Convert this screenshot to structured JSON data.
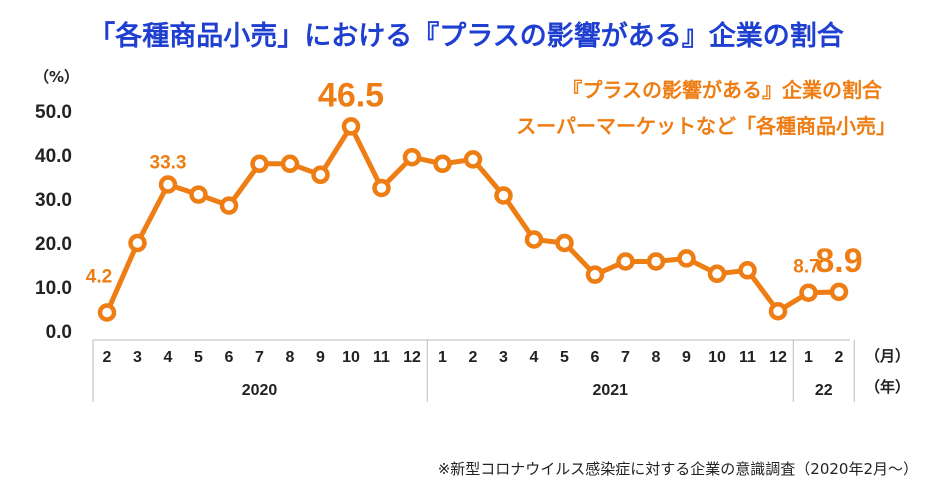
{
  "chart_data": {
    "type": "line",
    "title": "「各種商品小売」における『プラスの影響がある』企業の割合",
    "y_unit": "（%）",
    "x_unit": "（月）",
    "year_unit": "（年）",
    "ylim": [
      0,
      50
    ],
    "yticks": [
      "50.0",
      "40.0",
      "30.0",
      "20.0",
      "10.0",
      "0.0"
    ],
    "legend": [
      "『プラスの影響がある』企業の割合",
      "スーパーマーケットなど「各種商品小売」"
    ],
    "months": [
      "2",
      "3",
      "4",
      "5",
      "6",
      "7",
      "8",
      "9",
      "10",
      "11",
      "12",
      "1",
      "2",
      "3",
      "4",
      "5",
      "6",
      "7",
      "8",
      "9",
      "10",
      "11",
      "12",
      "1",
      "2"
    ],
    "years": [
      {
        "label": "2020",
        "count": 11
      },
      {
        "label": "2021",
        "count": 12
      },
      {
        "label": "22",
        "count": 2
      }
    ],
    "values": [
      4.2,
      20.0,
      33.3,
      31.0,
      28.5,
      38.0,
      38.0,
      35.5,
      46.5,
      32.5,
      39.5,
      38.0,
      39.0,
      30.8,
      20.8,
      20.0,
      12.8,
      15.8,
      15.8,
      16.5,
      13.0,
      13.8,
      4.5,
      8.7,
      8.9
    ],
    "data_labels": [
      {
        "index": 0,
        "text": "4.2",
        "size": "small"
      },
      {
        "index": 2,
        "text": "33.3",
        "size": "small"
      },
      {
        "index": 8,
        "text": "46.5",
        "size": "large"
      },
      {
        "index": 23,
        "text": "8.7",
        "size": "small"
      },
      {
        "index": 24,
        "text": "8.9",
        "size": "large"
      }
    ],
    "line_color": "#ee7d14",
    "title_color": "#1f3fd1",
    "grid": false
  },
  "footnote": "※新型コロナウイルス感染症に対する企業の意識調査（2020年2月～）"
}
